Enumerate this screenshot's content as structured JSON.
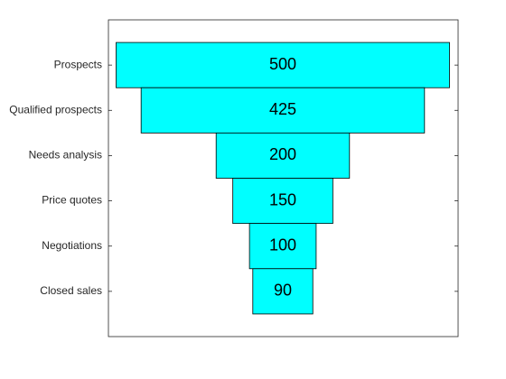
{
  "chart_data": {
    "type": "funnel",
    "categories": [
      "Prospects",
      "Qualified prospects",
      "Needs analysis",
      "Price quotes",
      "Negotiations",
      "Closed sales"
    ],
    "values": [
      500,
      425,
      200,
      150,
      100,
      90
    ],
    "color": "#00ffff"
  }
}
